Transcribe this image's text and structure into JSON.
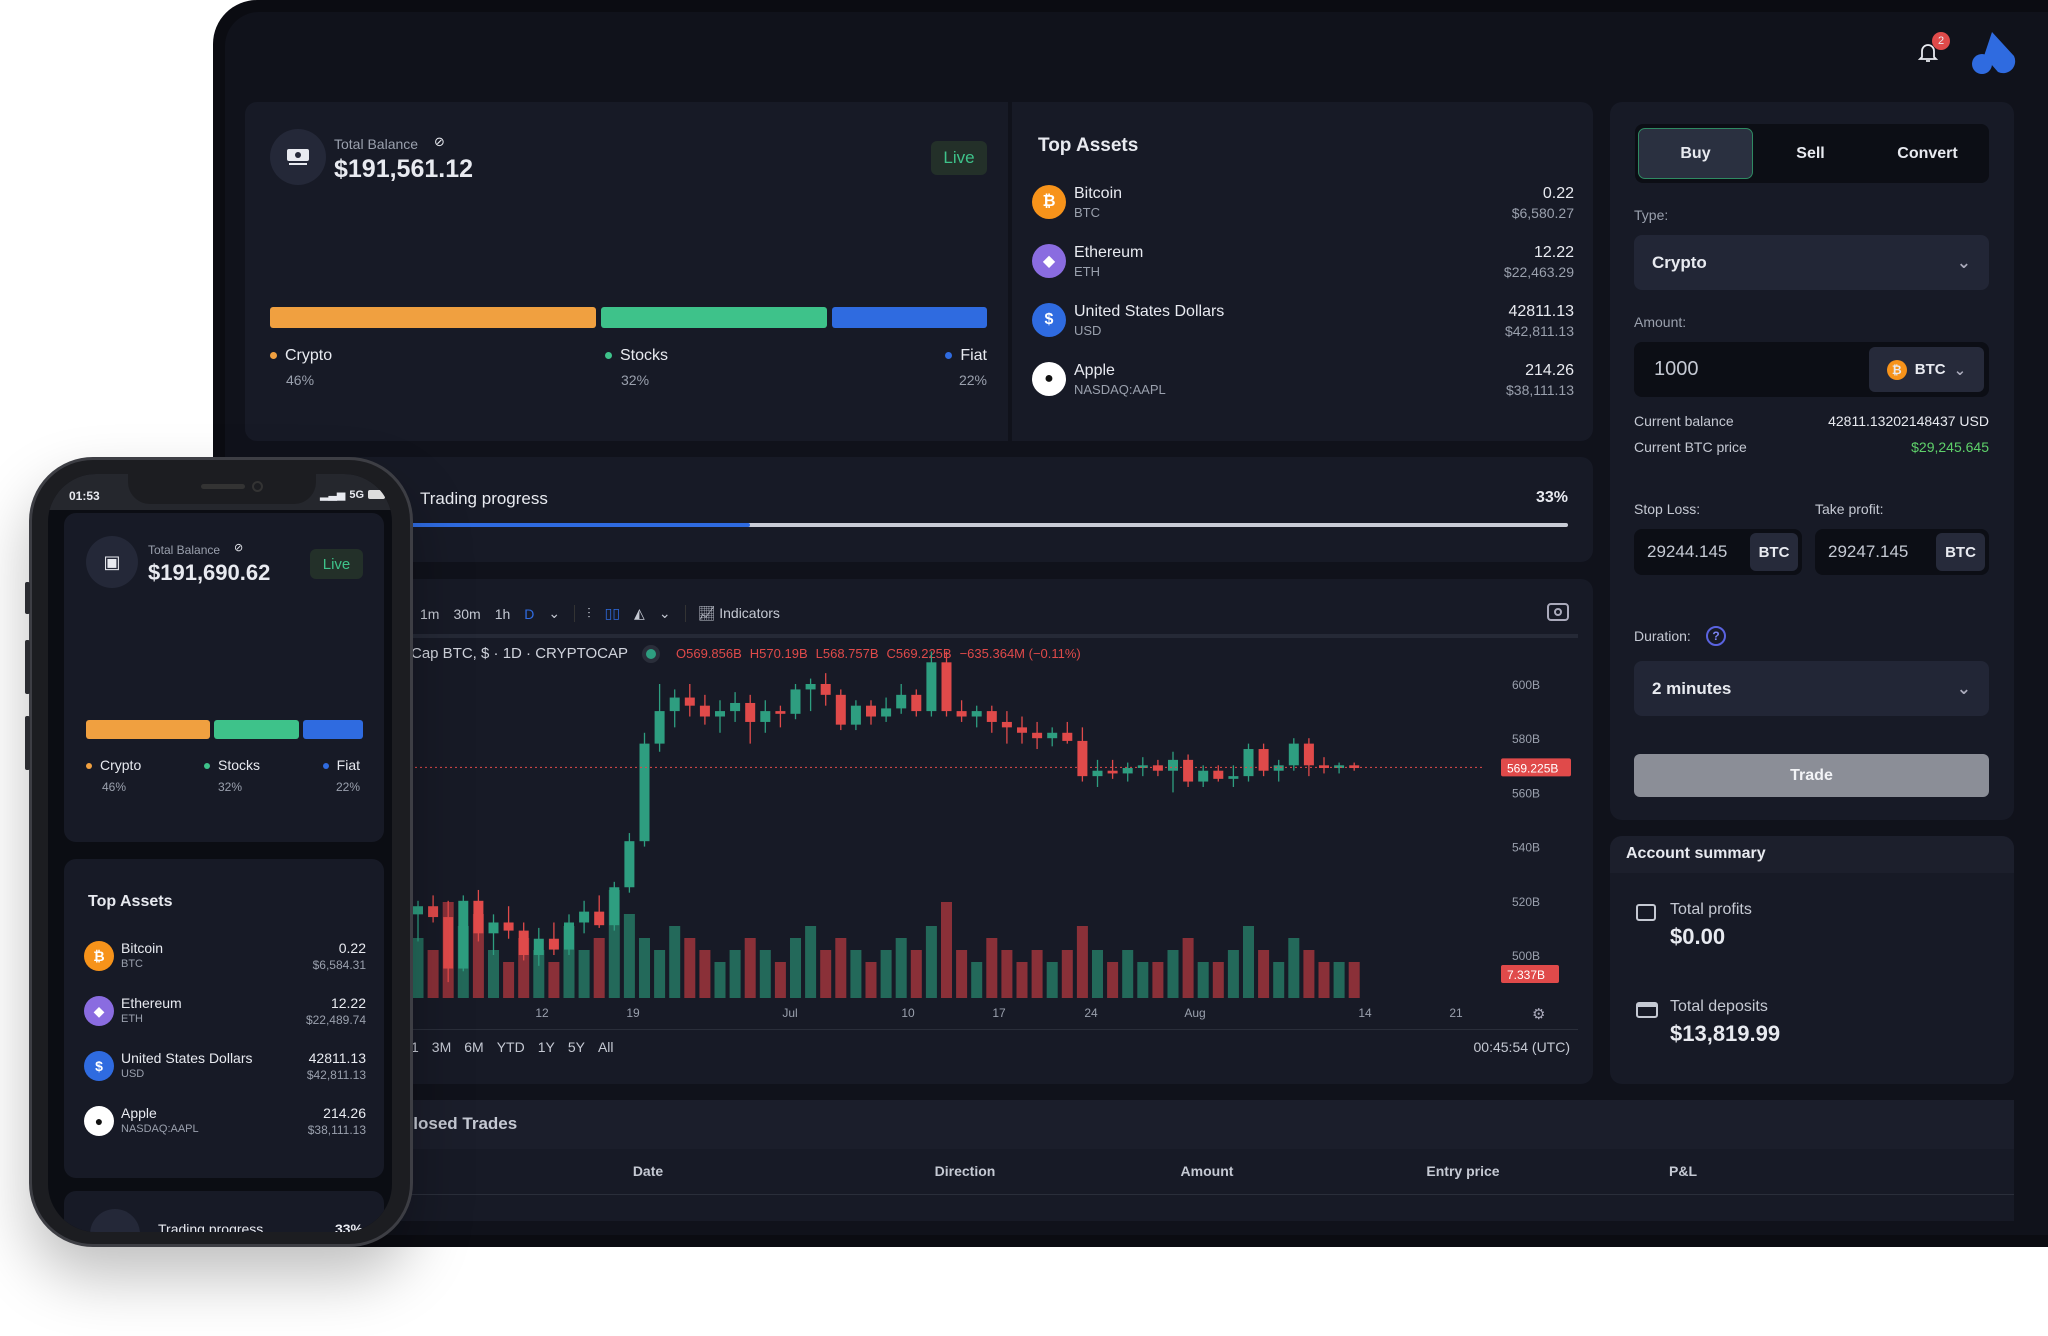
{
  "header": {
    "notification_count": "2"
  },
  "balance": {
    "label": "Total Balance",
    "amount": "$191,561.12",
    "live_label": "Live",
    "allocation": [
      {
        "name": "Crypto",
        "percent": "46%",
        "value": 46,
        "color": "#f0a040"
      },
      {
        "name": "Stocks",
        "percent": "32%",
        "value": 32,
        "color": "#3ec28a"
      },
      {
        "name": "Fiat",
        "percent": "22%",
        "value": 22,
        "color": "#2f6be0"
      }
    ]
  },
  "top_assets": {
    "title": "Top Assets",
    "items": [
      {
        "name": "Bitcoin",
        "ticker": "BTC",
        "qty": "0.22",
        "value": "$6,580.27",
        "icon": "bitcoin-icon",
        "color": "#f7931a",
        "glyph": "₿"
      },
      {
        "name": "Ethereum",
        "ticker": "ETH",
        "qty": "12.22",
        "value": "$22,463.29",
        "icon": "ethereum-icon",
        "color": "#8a6ce0",
        "glyph": "◆"
      },
      {
        "name": "United States Dollars",
        "ticker": "USD",
        "qty": "42811.13",
        "value": "$42,811.13",
        "icon": "dollar-icon",
        "color": "#2f6be0",
        "glyph": "$"
      },
      {
        "name": "Apple",
        "ticker": "NASDAQ:AAPL",
        "qty": "214.26",
        "value": "$38,111.13",
        "icon": "apple-icon",
        "color": "#ffffff",
        "glyph": "●"
      }
    ]
  },
  "trading_progress": {
    "label": "Trading progress",
    "percent_label": "33%",
    "value": 33
  },
  "chart_toolbar": {
    "intervals": [
      "1m",
      "30m",
      "1h",
      "D"
    ],
    "active_interval": "D",
    "indicators_label": "Indicators"
  },
  "chart_legend": {
    "symbol": "Cap BTC, $ · 1D · CRYPTOCAP",
    "o": "O569.856B",
    "h": "H570.19B",
    "l": "L568.757B",
    "c": "C569.225B",
    "change": "−635.364M (−0.11%)"
  },
  "chart_footer": {
    "ranges": [
      "1",
      "3M",
      "6M",
      "YTD",
      "1Y",
      "5Y",
      "All"
    ],
    "time": "00:45:54 (UTC)"
  },
  "chart_data": {
    "type": "candlestick",
    "ylim": [
      490,
      620
    ],
    "price_ticks": [
      "600B",
      "580B",
      "560B",
      "540B",
      "520B",
      "500B"
    ],
    "price_tick_values": [
      600,
      580,
      560,
      540,
      520,
      500
    ],
    "last_price_label": "569.225B",
    "last_price": 569.225,
    "volume_label": "7.337B",
    "x_tick_labels": [
      "12",
      "19",
      "Jul",
      "10",
      "17",
      "24",
      "Aug",
      "14",
      "21"
    ],
    "candles_ohlcv": [
      [
        515,
        520,
        505,
        518,
        5
      ],
      [
        518,
        522,
        512,
        514,
        4
      ],
      [
        514,
        520,
        490,
        495,
        8
      ],
      [
        495,
        522,
        494,
        520,
        6
      ],
      [
        520,
        524,
        505,
        508,
        7
      ],
      [
        508,
        515,
        500,
        512,
        4
      ],
      [
        512,
        518,
        506,
        509,
        3
      ],
      [
        509,
        512,
        498,
        500,
        5
      ],
      [
        500,
        510,
        496,
        506,
        4
      ],
      [
        506,
        512,
        500,
        502,
        3
      ],
      [
        502,
        515,
        500,
        512,
        6
      ],
      [
        512,
        520,
        508,
        516,
        4
      ],
      [
        516,
        522,
        510,
        511,
        5
      ],
      [
        511,
        527,
        509,
        525,
        9
      ],
      [
        525,
        545,
        523,
        542,
        7
      ],
      [
        542,
        582,
        540,
        578,
        5
      ],
      [
        578,
        600,
        575,
        590,
        4
      ],
      [
        590,
        598,
        584,
        595,
        6
      ],
      [
        595,
        600,
        588,
        592,
        5
      ],
      [
        592,
        596,
        585,
        588,
        4
      ],
      [
        588,
        594,
        582,
        590,
        3
      ],
      [
        590,
        597,
        586,
        593,
        4
      ],
      [
        593,
        596,
        578,
        586,
        5
      ],
      [
        586,
        594,
        582,
        590,
        4
      ],
      [
        590,
        592,
        584,
        589,
        3
      ],
      [
        589,
        600,
        587,
        598,
        5
      ],
      [
        598,
        602,
        590,
        600,
        6
      ],
      [
        600,
        604,
        592,
        596,
        4
      ],
      [
        596,
        598,
        583,
        585,
        5
      ],
      [
        585,
        594,
        583,
        592,
        4
      ],
      [
        592,
        594,
        585,
        588,
        3
      ],
      [
        588,
        595,
        586,
        591,
        4
      ],
      [
        591,
        600,
        589,
        596,
        5
      ],
      [
        596,
        598,
        588,
        590,
        4
      ],
      [
        590,
        612,
        588,
        608,
        6
      ],
      [
        608,
        612,
        588,
        590,
        8
      ],
      [
        590,
        594,
        586,
        588,
        4
      ],
      [
        588,
        592,
        584,
        590,
        3
      ],
      [
        590,
        592,
        582,
        586,
        5
      ],
      [
        586,
        590,
        578,
        584,
        4
      ],
      [
        584,
        588,
        578,
        582,
        3
      ],
      [
        582,
        586,
        576,
        580,
        4
      ],
      [
        580,
        584,
        577,
        582,
        3
      ],
      [
        582,
        586,
        578,
        579,
        4
      ],
      [
        579,
        584,
        564,
        566,
        6
      ],
      [
        566,
        572,
        562,
        568,
        4
      ],
      [
        568,
        572,
        565,
        567,
        3
      ],
      [
        567,
        571,
        564,
        569,
        4
      ],
      [
        569,
        573,
        566,
        570,
        3
      ],
      [
        570,
        572,
        566,
        568,
        3
      ],
      [
        568,
        575,
        560,
        572,
        4
      ],
      [
        572,
        574,
        562,
        564,
        5
      ],
      [
        564,
        570,
        562,
        568,
        3
      ],
      [
        568,
        570,
        564,
        565,
        3
      ],
      [
        565,
        570,
        562,
        566,
        4
      ],
      [
        566,
        578,
        564,
        576,
        6
      ],
      [
        576,
        578,
        566,
        568,
        4
      ],
      [
        568,
        572,
        564,
        570,
        3
      ],
      [
        570,
        580,
        568,
        578,
        5
      ],
      [
        578,
        580,
        566,
        570,
        4
      ],
      [
        570,
        573,
        567,
        569,
        3
      ],
      [
        569,
        571,
        567,
        570,
        3
      ],
      [
        570,
        571,
        568,
        569,
        3
      ]
    ],
    "up_color": "#2e9e80",
    "down_color": "#e04a4a"
  },
  "closed_trades": {
    "title": "Closed Trades",
    "columns": [
      "Date",
      "Direction",
      "Amount",
      "Entry price",
      "P&L"
    ]
  },
  "trade_panel": {
    "tabs": [
      "Buy",
      "Sell",
      "Convert"
    ],
    "active_tab": "Buy",
    "type_label": "Type:",
    "type_value": "Crypto",
    "amount_label": "Amount:",
    "amount_value": "1000",
    "amount_currency": "BTC",
    "current_balance_label": "Current balance",
    "current_balance": "42811.13202148437 USD",
    "btc_price_label": "Current BTC price",
    "btc_price": "$29,245.645",
    "stop_loss_label": "Stop Loss:",
    "stop_loss": "29244.145",
    "take_profit_label": "Take profit:",
    "take_profit": "29247.145",
    "unit": "BTC",
    "duration_label": "Duration:",
    "duration_value": "2 minutes",
    "trade_button": "Trade"
  },
  "account_summary": {
    "title": "Account summary",
    "profits_label": "Total profits",
    "profits": "$0.00",
    "deposits_label": "Total deposits",
    "deposits": "$13,819.99"
  },
  "phone": {
    "time": "01:53",
    "network": "5G",
    "balance_label": "Total Balance",
    "balance": "$191,690.62",
    "live_label": "Live",
    "allocation": [
      {
        "name": "Crypto",
        "percent": "46%"
      },
      {
        "name": "Stocks",
        "percent": "32%"
      },
      {
        "name": "Fiat",
        "percent": "22%"
      }
    ],
    "top_assets_title": "Top Assets",
    "assets": [
      {
        "name": "Bitcoin",
        "ticker": "BTC",
        "qty": "0.22",
        "value": "$6,584.31"
      },
      {
        "name": "Ethereum",
        "ticker": "ETH",
        "qty": "12.22",
        "value": "$22,489.74"
      },
      {
        "name": "United States Dollars",
        "ticker": "USD",
        "qty": "42811.13",
        "value": "$42,811.13"
      },
      {
        "name": "Apple",
        "ticker": "NASDAQ:AAPL",
        "qty": "214.26",
        "value": "$38,111.13"
      }
    ],
    "progress_label": "Trading progress",
    "progress_percent": "33%"
  }
}
